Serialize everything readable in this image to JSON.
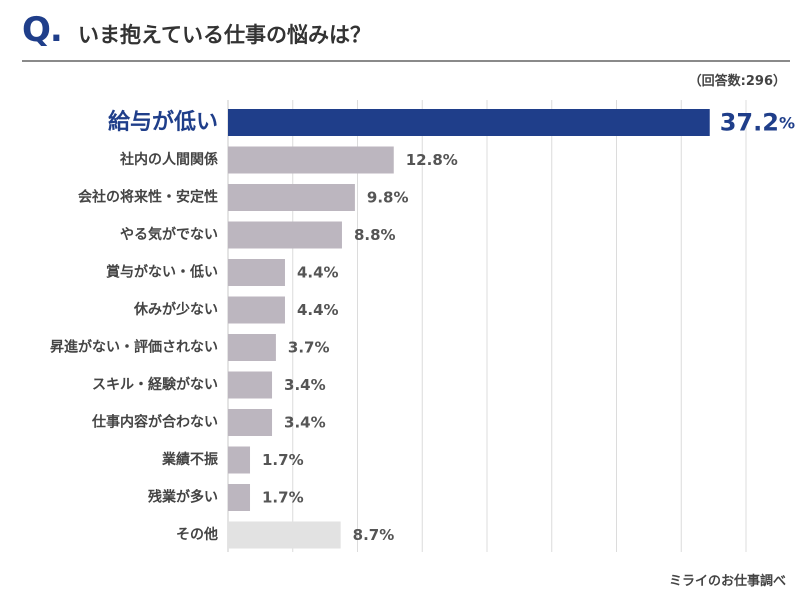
{
  "header": {
    "q_mark": "Q.",
    "title": "いま抱えている仕事の悩みは？"
  },
  "note": "（回答数:296）",
  "source": "ミライのお仕事調べ",
  "colors": {
    "highlight": "#1f3e8a",
    "bar": "#bcb6bf",
    "other_bar": "#e2e2e2",
    "grid": "#dcdcdc"
  },
  "chart_data": {
    "type": "bar",
    "orientation": "horizontal",
    "unit": "%",
    "xlim": [
      0,
      40
    ],
    "grid": true,
    "categories": [
      "給与が低い",
      "社内の人間関係",
      "会社の将来性・安定性",
      "やる気がでない",
      "賞与がない・低い",
      "休みが少ない",
      "昇進がない・評価されない",
      "スキル・経験がない",
      "仕事内容が合わない",
      "業績不振",
      "残業が多い",
      "その他"
    ],
    "values": [
      37.2,
      12.8,
      9.8,
      8.8,
      4.4,
      4.4,
      3.7,
      3.4,
      3.4,
      1.7,
      1.7,
      8.7
    ],
    "value_labels": [
      "37.2",
      "12.8%",
      "9.8%",
      "8.8%",
      "4.4%",
      "4.4%",
      "3.7%",
      "3.4%",
      "3.4%",
      "1.7%",
      "1.7%",
      "8.7%"
    ],
    "highlight_suffix": "%",
    "highlight_index": 0,
    "other_index": 11
  }
}
